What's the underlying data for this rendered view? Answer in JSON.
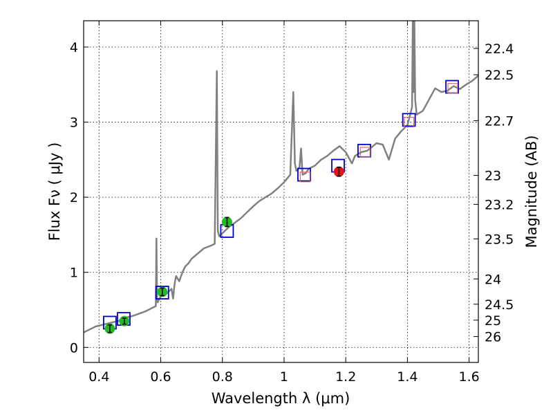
{
  "chart_data": {
    "type": "scatter",
    "title": "",
    "xlabel": "Wavelength  λ (μm)",
    "ylabel": "Flux  Fν  ( μJy )",
    "ylabel_right": "Magnitude (AB)",
    "xlim": [
      0.35,
      1.63
    ],
    "ylim": [
      -0.2,
      4.35
    ],
    "grid": true,
    "x_ticks": [
      0.4,
      0.6,
      0.8,
      1.0,
      1.2,
      1.4,
      1.6
    ],
    "x_tick_labels": [
      "0.4",
      "0.6",
      "0.8",
      "1",
      "1.2",
      "1.4",
      "1.6"
    ],
    "y_ticks": [
      0,
      1,
      2,
      3,
      4
    ],
    "y_tick_labels": [
      "0",
      "1",
      "2",
      "3",
      "4"
    ],
    "mag_ticks": [
      22.4,
      22.5,
      22.7,
      23,
      23.2,
      23.5,
      24,
      24.5,
      25,
      26
    ],
    "mag_tick_labels": [
      "22.4",
      "22.5",
      "22.7",
      "23",
      "23.2",
      "23.5",
      "24",
      "24.5",
      "25",
      "26"
    ],
    "series": [
      {
        "name": "model spectrum",
        "kind": "line",
        "color": "#808080",
        "x": [
          0.35,
          0.37,
          0.39,
          0.41,
          0.43,
          0.45,
          0.47,
          0.49,
          0.51,
          0.53,
          0.55,
          0.57,
          0.584,
          0.586,
          0.588,
          0.59,
          0.6,
          0.62,
          0.635,
          0.64,
          0.645,
          0.65,
          0.66,
          0.67,
          0.68,
          0.69,
          0.7,
          0.72,
          0.74,
          0.76,
          0.775,
          0.782,
          0.785,
          0.79,
          0.8,
          0.82,
          0.84,
          0.86,
          0.88,
          0.9,
          0.92,
          0.94,
          0.96,
          0.98,
          1.0,
          1.02,
          1.03,
          1.035,
          1.04,
          1.05,
          1.055,
          1.06,
          1.07,
          1.08,
          1.1,
          1.12,
          1.14,
          1.16,
          1.18,
          1.2,
          1.22,
          1.23,
          1.25,
          1.27,
          1.3,
          1.32,
          1.34,
          1.36,
          1.38,
          1.4,
          1.415,
          1.418,
          1.42,
          1.422,
          1.425,
          1.43,
          1.45,
          1.47,
          1.49,
          1.51,
          1.53,
          1.55,
          1.57,
          1.59,
          1.61,
          1.63
        ],
        "y": [
          0.2,
          0.24,
          0.28,
          0.3,
          0.32,
          0.34,
          0.36,
          0.4,
          0.42,
          0.45,
          0.48,
          0.52,
          0.55,
          1.45,
          0.62,
          0.6,
          0.68,
          0.72,
          0.78,
          0.65,
          0.85,
          0.95,
          0.88,
          1.0,
          1.08,
          1.12,
          1.18,
          1.25,
          1.32,
          1.35,
          1.38,
          3.68,
          1.55,
          1.48,
          1.52,
          1.6,
          1.66,
          1.72,
          1.8,
          1.88,
          1.95,
          2.0,
          2.05,
          2.12,
          2.2,
          2.3,
          3.4,
          2.45,
          2.35,
          2.4,
          2.65,
          2.3,
          2.32,
          2.38,
          2.42,
          2.5,
          2.55,
          2.62,
          2.68,
          2.6,
          2.45,
          2.55,
          2.6,
          2.62,
          2.72,
          2.7,
          2.5,
          2.78,
          2.88,
          2.96,
          3.2,
          4.6,
          3.4,
          4.6,
          3.3,
          3.1,
          3.15,
          3.3,
          3.45,
          3.4,
          3.42,
          3.48,
          3.44,
          3.5,
          3.55,
          3.62
        ]
      },
      {
        "name": "model photometry (blue squares)",
        "kind": "square",
        "color": "#0000cc",
        "x": [
          0.435,
          0.48,
          0.605,
          0.815,
          1.065,
          1.175,
          1.26,
          1.405,
          1.545
        ],
        "y": [
          0.33,
          0.38,
          0.73,
          1.55,
          2.3,
          2.42,
          2.62,
          3.03,
          3.47
        ]
      },
      {
        "name": "observed photometry (red squares)",
        "kind": "square",
        "color": "#dd6666",
        "x": [
          1.068,
          1.263,
          1.405,
          1.547
        ],
        "y": [
          2.27,
          2.6,
          3.0,
          3.45
        ]
      },
      {
        "name": "detections (green)",
        "kind": "circle",
        "color": "#22bb22",
        "x": [
          0.435,
          0.482,
          0.605,
          0.815
        ],
        "y": [
          0.25,
          0.35,
          0.74,
          1.67
        ],
        "err": [
          0.05,
          0.04,
          0.05,
          0.06
        ]
      },
      {
        "name": "detection (red)",
        "kind": "circle",
        "color": "#ee1111",
        "x": [
          1.178
        ],
        "y": [
          2.34
        ],
        "err": [
          0.06
        ]
      }
    ]
  }
}
